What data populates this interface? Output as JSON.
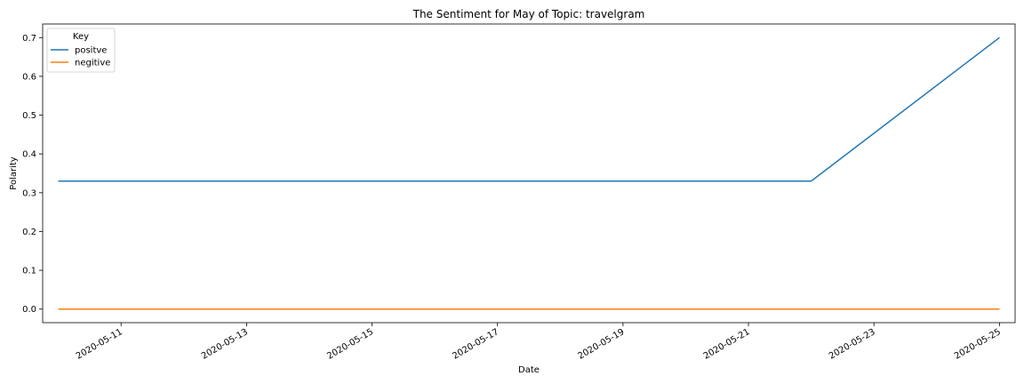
{
  "chart_data": {
    "type": "line",
    "title": "The Sentiment for May of Topic: travelgram",
    "xlabel": "Date",
    "ylabel": "Polarity",
    "x": [
      "2020-05-10",
      "2020-05-22",
      "2020-05-25"
    ],
    "x_ticks": [
      "2020-05-11",
      "2020-05-13",
      "2020-05-15",
      "2020-05-17",
      "2020-05-19",
      "2020-05-21",
      "2020-05-23",
      "2020-05-25"
    ],
    "y_ticks": [
      "0.0",
      "0.1",
      "0.2",
      "0.3",
      "0.4",
      "0.5",
      "0.6",
      "0.7"
    ],
    "xlim": [
      "2020-05-09",
      "2020-05-26"
    ],
    "ylim": [
      -0.035,
      0.735
    ],
    "grid": false,
    "legend": {
      "title": "Key",
      "placement": "top-left"
    },
    "series": [
      {
        "name": "positve",
        "color": "#1f77b4",
        "values": [
          0.33,
          0.33,
          0.7
        ]
      },
      {
        "name": "negitive",
        "color": "#ff7f0e",
        "values": [
          0.0,
          0.0,
          0.0
        ]
      }
    ]
  }
}
